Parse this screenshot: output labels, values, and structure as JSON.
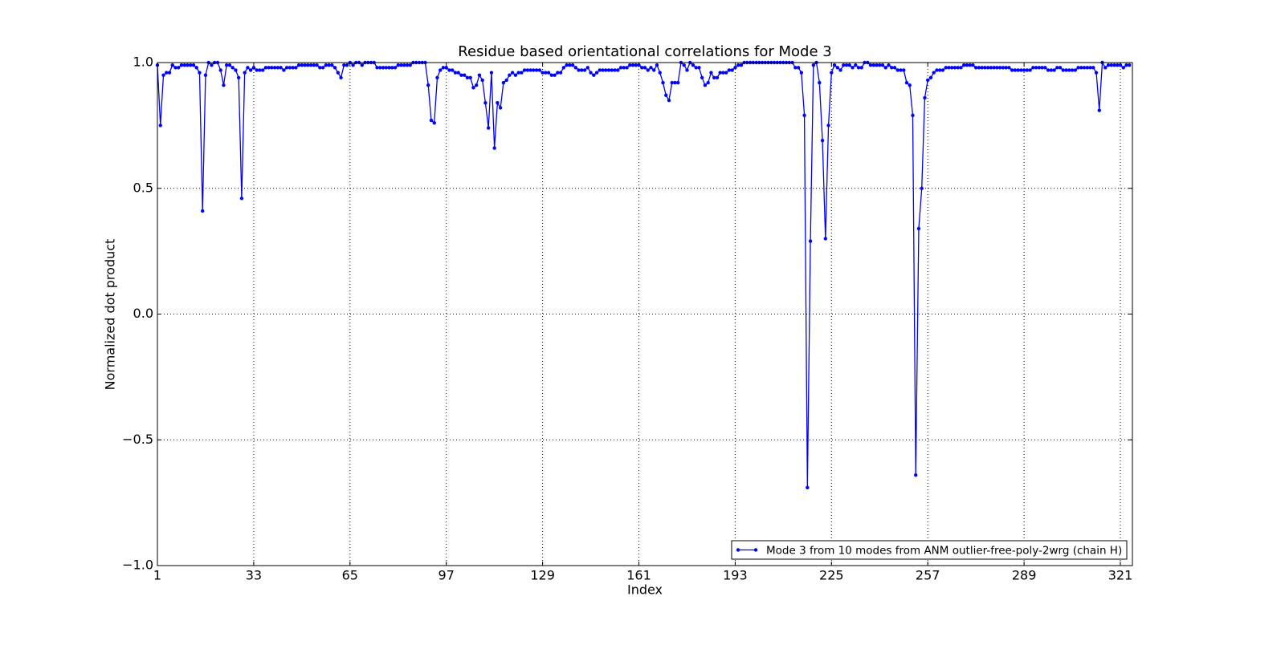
{
  "chart_data": {
    "type": "line",
    "title": "Residue based orientational correlations for Mode 3",
    "x_label": "Index",
    "y_label": "Normalized dot product",
    "x": [
      1,
      2,
      3,
      4,
      5,
      6,
      7,
      8,
      9,
      10,
      11,
      12,
      13,
      14,
      15,
      16,
      17,
      18,
      19,
      20,
      21,
      22,
      23,
      24,
      25,
      26,
      27,
      28,
      29,
      30,
      31,
      32,
      33,
      34,
      35,
      36,
      37,
      38,
      39,
      40,
      41,
      42,
      43,
      44,
      45,
      46,
      47,
      48,
      49,
      50,
      51,
      52,
      53,
      54,
      55,
      56,
      57,
      58,
      59,
      60,
      61,
      62,
      63,
      64,
      65,
      66,
      67,
      68,
      69,
      70,
      71,
      72,
      73,
      74,
      75,
      76,
      77,
      78,
      79,
      80,
      81,
      82,
      83,
      84,
      85,
      86,
      87,
      88,
      89,
      90,
      91,
      92,
      93,
      94,
      95,
      96,
      97,
      98,
      99,
      100,
      101,
      102,
      103,
      104,
      105,
      106,
      107,
      108,
      109,
      110,
      111,
      112,
      113,
      114,
      115,
      116,
      117,
      118,
      119,
      120,
      121,
      122,
      123,
      124,
      125,
      126,
      127,
      128,
      129,
      130,
      131,
      132,
      133,
      134,
      135,
      136,
      137,
      138,
      139,
      140,
      141,
      142,
      143,
      144,
      145,
      146,
      147,
      148,
      149,
      150,
      151,
      152,
      153,
      154,
      155,
      156,
      157,
      158,
      159,
      160,
      161,
      162,
      163,
      164,
      165,
      166,
      167,
      168,
      169,
      170,
      171,
      172,
      173,
      174,
      175,
      176,
      177,
      178,
      179,
      180,
      181,
      182,
      183,
      184,
      185,
      186,
      187,
      188,
      189,
      190,
      191,
      192,
      193,
      194,
      195,
      196,
      197,
      198,
      199,
      200,
      201,
      202,
      203,
      204,
      205,
      206,
      207,
      208,
      209,
      210,
      211,
      212,
      213,
      214,
      215,
      216,
      217,
      218,
      219,
      220,
      221,
      222,
      223,
      224,
      225,
      226,
      227,
      228,
      229,
      230,
      231,
      232,
      233,
      234,
      235,
      236,
      237,
      238,
      239,
      240,
      241,
      242,
      243,
      244,
      245,
      246,
      247,
      248,
      249,
      250,
      251,
      252,
      253,
      254,
      255,
      256,
      257,
      258,
      259,
      260,
      261,
      262,
      263,
      264,
      265,
      266,
      267,
      268,
      269,
      270,
      271,
      272,
      273,
      274,
      275,
      276,
      277,
      278,
      279,
      280,
      281,
      282,
      283,
      284,
      285,
      286,
      287,
      288,
      289,
      290,
      291,
      292,
      293,
      294,
      295,
      296,
      297,
      298,
      299,
      300,
      301,
      302,
      303,
      304,
      305,
      306,
      307,
      308,
      309,
      310,
      311,
      312,
      313,
      314,
      315,
      316,
      317,
      318,
      319,
      320,
      321,
      322,
      323,
      324
    ],
    "series": [
      {
        "name": "Mode 3 from 10 modes from ANM outlier-free-poly-2wrg (chain H)",
        "color": "#0000ff",
        "values": [
          0.99,
          0.75,
          0.95,
          0.96,
          0.96,
          0.99,
          0.98,
          0.98,
          0.99,
          0.99,
          0.99,
          0.99,
          0.99,
          0.98,
          0.96,
          0.41,
          0.95,
          1.0,
          0.99,
          1.0,
          1.0,
          0.97,
          0.91,
          0.99,
          0.99,
          0.98,
          0.97,
          0.94,
          0.46,
          0.96,
          0.98,
          0.97,
          0.98,
          0.97,
          0.97,
          0.97,
          0.98,
          0.98,
          0.98,
          0.98,
          0.98,
          0.98,
          0.97,
          0.98,
          0.98,
          0.98,
          0.98,
          0.99,
          0.99,
          0.99,
          0.99,
          0.99,
          0.99,
          0.99,
          0.98,
          0.98,
          0.99,
          0.99,
          0.99,
          0.98,
          0.96,
          0.94,
          0.99,
          0.99,
          1.0,
          0.99,
          1.0,
          1.0,
          0.99,
          1.0,
          1.0,
          1.0,
          1.0,
          0.98,
          0.98,
          0.98,
          0.98,
          0.98,
          0.98,
          0.98,
          0.99,
          0.99,
          0.99,
          0.99,
          0.99,
          1.0,
          1.0,
          1.0,
          1.0,
          1.0,
          0.91,
          0.77,
          0.76,
          0.94,
          0.97,
          0.98,
          0.98,
          0.97,
          0.97,
          0.96,
          0.96,
          0.95,
          0.95,
          0.94,
          0.94,
          0.9,
          0.91,
          0.95,
          0.93,
          0.84,
          0.74,
          0.96,
          0.66,
          0.84,
          0.82,
          0.92,
          0.93,
          0.95,
          0.96,
          0.95,
          0.96,
          0.96,
          0.97,
          0.97,
          0.97,
          0.97,
          0.97,
          0.97,
          0.96,
          0.96,
          0.96,
          0.95,
          0.95,
          0.96,
          0.96,
          0.98,
          0.99,
          0.99,
          0.99,
          0.98,
          0.97,
          0.97,
          0.97,
          0.98,
          0.96,
          0.95,
          0.96,
          0.97,
          0.97,
          0.97,
          0.97,
          0.97,
          0.97,
          0.97,
          0.98,
          0.98,
          0.98,
          0.99,
          0.99,
          0.99,
          0.99,
          0.98,
          0.98,
          0.97,
          0.98,
          0.97,
          0.99,
          0.96,
          0.92,
          0.87,
          0.85,
          0.92,
          0.92,
          0.92,
          1.0,
          0.99,
          0.97,
          1.0,
          0.99,
          0.98,
          0.98,
          0.94,
          0.91,
          0.92,
          0.96,
          0.94,
          0.94,
          0.96,
          0.96,
          0.96,
          0.97,
          0.97,
          0.98,
          0.99,
          0.99,
          1.0,
          1.0,
          1.0,
          1.0,
          1.0,
          1.0,
          1.0,
          1.0,
          1.0,
          1.0,
          1.0,
          1.0,
          1.0,
          1.0,
          1.0,
          1.0,
          1.0,
          0.98,
          0.98,
          0.96,
          0.79,
          -0.69,
          0.29,
          0.99,
          1.0,
          0.92,
          0.69,
          0.3,
          0.75,
          0.96,
          0.99,
          0.98,
          0.97,
          0.99,
          0.99,
          0.99,
          0.98,
          0.99,
          0.98,
          0.98,
          1.0,
          1.0,
          0.99,
          0.99,
          0.99,
          0.99,
          0.99,
          0.98,
          0.99,
          0.98,
          0.98,
          0.97,
          0.97,
          0.97,
          0.92,
          0.91,
          0.79,
          -0.64,
          0.34,
          0.5,
          0.86,
          0.93,
          0.94,
          0.96,
          0.97,
          0.97,
          0.97,
          0.98,
          0.98,
          0.98,
          0.98,
          0.98,
          0.98,
          0.99,
          0.99,
          0.99,
          0.99,
          0.98,
          0.98,
          0.98,
          0.98,
          0.98,
          0.98,
          0.98,
          0.98,
          0.98,
          0.98,
          0.98,
          0.98,
          0.97,
          0.97,
          0.97,
          0.97,
          0.97,
          0.97,
          0.97,
          0.98,
          0.98,
          0.98,
          0.98,
          0.98,
          0.97,
          0.97,
          0.97,
          0.98,
          0.98,
          0.97,
          0.97,
          0.97,
          0.97,
          0.97,
          0.98,
          0.98,
          0.98,
          0.98,
          0.98,
          0.98,
          0.96,
          0.81,
          1.0,
          0.98,
          0.99,
          0.99,
          0.99,
          0.99,
          0.99,
          0.98,
          0.99,
          0.99
        ]
      }
    ],
    "xlim": [
      1,
      325
    ],
    "xticks": [
      1,
      33,
      65,
      97,
      129,
      161,
      193,
      225,
      257,
      289,
      321
    ],
    "ylim": [
      -1.0,
      1.0
    ],
    "yticks": [
      {
        "value": -1.0,
        "label": "−1.0"
      },
      {
        "value": -0.5,
        "label": "−0.5"
      },
      {
        "value": 0.0,
        "label": "0.0"
      },
      0.5,
      {
        "value": 1.0,
        "label": "1.0"
      }
    ],
    "grid": true,
    "legend": "lower right"
  }
}
